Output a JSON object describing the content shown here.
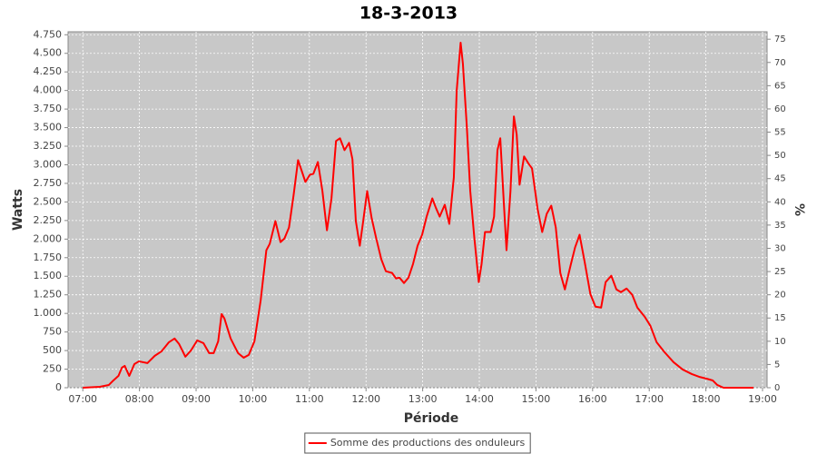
{
  "chart_data": {
    "type": "line",
    "title": "18-3-2013",
    "xlabel": "Période",
    "ylabel": "Watts",
    "y2label": "%",
    "x": [
      7.0,
      7.3,
      7.46,
      7.54,
      7.63,
      7.69,
      7.74,
      7.82,
      7.91,
      7.99,
      8.14,
      8.27,
      8.39,
      8.52,
      8.62,
      8.7,
      8.81,
      8.91,
      9.02,
      9.13,
      9.23,
      9.31,
      9.39,
      9.45,
      9.5,
      9.61,
      9.74,
      9.84,
      9.93,
      10.03,
      10.14,
      10.24,
      10.3,
      10.4,
      10.49,
      10.56,
      10.64,
      10.72,
      10.8,
      10.86,
      10.93,
      11.01,
      11.07,
      11.15,
      11.23,
      11.31,
      11.39,
      11.47,
      11.54,
      11.62,
      11.7,
      11.76,
      11.82,
      11.89,
      11.95,
      12.02,
      12.1,
      12.18,
      12.27,
      12.35,
      12.46,
      12.53,
      12.59,
      12.67,
      12.75,
      12.83,
      12.91,
      12.99,
      13.07,
      13.17,
      13.23,
      13.3,
      13.39,
      13.47,
      13.55,
      13.6,
      13.67,
      13.71,
      13.78,
      13.84,
      13.91,
      13.99,
      14.04,
      14.1,
      14.2,
      14.26,
      14.32,
      14.37,
      14.43,
      14.48,
      14.55,
      14.61,
      14.66,
      14.71,
      14.79,
      14.87,
      14.93,
      15.03,
      15.11,
      15.19,
      15.27,
      15.35,
      15.43,
      15.51,
      15.61,
      15.69,
      15.77,
      15.86,
      15.96,
      16.05,
      16.15,
      16.23,
      16.33,
      16.42,
      16.5,
      16.6,
      16.7,
      16.79,
      16.92,
      17.02,
      17.13,
      17.27,
      17.43,
      17.59,
      17.75,
      17.88,
      18.01,
      18.12,
      18.2,
      18.31,
      18.84
    ],
    "series": [
      {
        "name": "Somme des productions des onduleurs",
        "color": "#ff0000",
        "values": [
          0,
          12,
          37,
          98,
          160,
          270,
          294,
          159,
          318,
          355,
          331,
          429,
          490,
          612,
          662,
          588,
          417,
          502,
          637,
          600,
          466,
          466,
          625,
          992,
          931,
          662,
          466,
          404,
          441,
          625,
          1176,
          1850,
          1936,
          2242,
          1960,
          2009,
          2156,
          2585,
          3063,
          2928,
          2769,
          2867,
          2879,
          3038,
          2646,
          2119,
          2548,
          3320,
          3357,
          3197,
          3295,
          3075,
          2242,
          1911,
          2242,
          2646,
          2279,
          2009,
          1727,
          1568,
          1544,
          1470,
          1482,
          1409,
          1482,
          1666,
          1911,
          2058,
          2303,
          2548,
          2426,
          2303,
          2462,
          2205,
          2830,
          3994,
          4643,
          4361,
          3504,
          2646,
          2034,
          1421,
          1666,
          2095,
          2095,
          2303,
          3197,
          3357,
          2524,
          1850,
          2646,
          3651,
          3406,
          2732,
          3112,
          3014,
          2952,
          2401,
          2095,
          2340,
          2450,
          2156,
          1544,
          1323,
          1642,
          1887,
          2058,
          1691,
          1262,
          1090,
          1078,
          1421,
          1507,
          1323,
          1286,
          1335,
          1250,
          1078,
          955,
          833,
          612,
          478,
          343,
          245,
          184,
          147,
          122,
          98,
          37,
          0,
          0
        ]
      }
    ],
    "xlim": [
      6.74,
      19.08
    ],
    "xticks": [
      {
        "value": 7,
        "label": "07:00"
      },
      {
        "value": 8,
        "label": "08:00"
      },
      {
        "value": 9,
        "label": "09:00"
      },
      {
        "value": 10,
        "label": "10:00"
      },
      {
        "value": 11,
        "label": "11:00"
      },
      {
        "value": 12,
        "label": "12:00"
      },
      {
        "value": 13,
        "label": "13:00"
      },
      {
        "value": 14,
        "label": "14:00"
      },
      {
        "value": 15,
        "label": "15:00"
      },
      {
        "value": 16,
        "label": "16:00"
      },
      {
        "value": 17,
        "label": "17:00"
      },
      {
        "value": 18,
        "label": "18:00"
      },
      {
        "value": 19,
        "label": "19:00"
      }
    ],
    "ylim": [
      0,
      4790
    ],
    "yticks": [
      0,
      250,
      500,
      750,
      {
        "value": 1000,
        "label": "1.000"
      },
      {
        "value": 1250,
        "label": "1.250"
      },
      {
        "value": 1500,
        "label": "1.500"
      },
      {
        "value": 1750,
        "label": "1.750"
      },
      {
        "value": 2000,
        "label": "2.000"
      },
      {
        "value": 2250,
        "label": "2.250"
      },
      {
        "value": 2500,
        "label": "2.500"
      },
      {
        "value": 2750,
        "label": "2.750"
      },
      {
        "value": 3000,
        "label": "3.000"
      },
      {
        "value": 3250,
        "label": "3.250"
      },
      {
        "value": 3500,
        "label": "3.500"
      },
      {
        "value": 3750,
        "label": "3.750"
      },
      {
        "value": 4000,
        "label": "4.000"
      },
      {
        "value": 4250,
        "label": "4.250"
      },
      {
        "value": 4500,
        "label": "4.500"
      },
      {
        "value": 4750,
        "label": "4.750"
      }
    ],
    "y2lim": [
      0,
      76.6
    ],
    "y2ticks": [
      0,
      5,
      10,
      15,
      20,
      25,
      30,
      35,
      40,
      45,
      50,
      55,
      60,
      65,
      70,
      75
    ],
    "grid": true,
    "background": "#c8c8c8",
    "legend": "bottom"
  }
}
